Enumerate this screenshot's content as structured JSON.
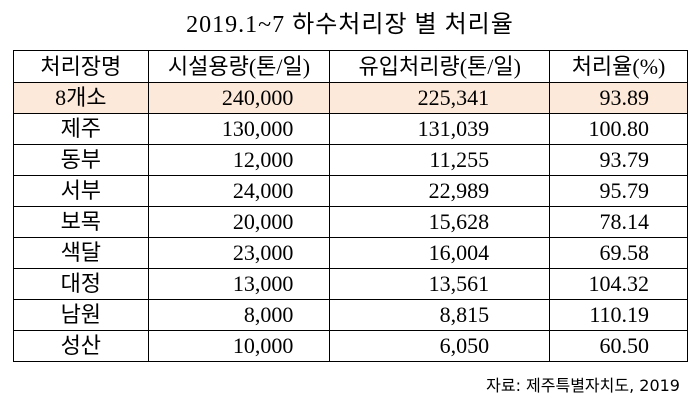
{
  "title": "2019.1~7 하수처리장 별 처리율",
  "table": {
    "header": [
      "처리장명",
      "시설용량(톤/일)",
      "유입처리량(톤/일)",
      "처리율(%)"
    ],
    "rows": [
      [
        "8개소",
        "240,000",
        "225,341",
        "93.89"
      ],
      [
        "제주",
        "130,000",
        "131,039",
        "100.80"
      ],
      [
        "동부",
        "12,000",
        "11,255",
        "93.79"
      ],
      [
        "서부",
        "24,000",
        "22,989",
        "95.79"
      ],
      [
        "보목",
        "20,000",
        "15,628",
        "78.14"
      ],
      [
        "색달",
        "23,000",
        "16,004",
        "69.58"
      ],
      [
        "대정",
        "13,000",
        "13,561",
        "104.32"
      ],
      [
        "남원",
        "8,000",
        "8,815",
        "110.19"
      ],
      [
        "성산",
        "10,000",
        "6,050",
        "60.50"
      ]
    ]
  },
  "source": "자료: 제주특별자치도, 2019"
}
